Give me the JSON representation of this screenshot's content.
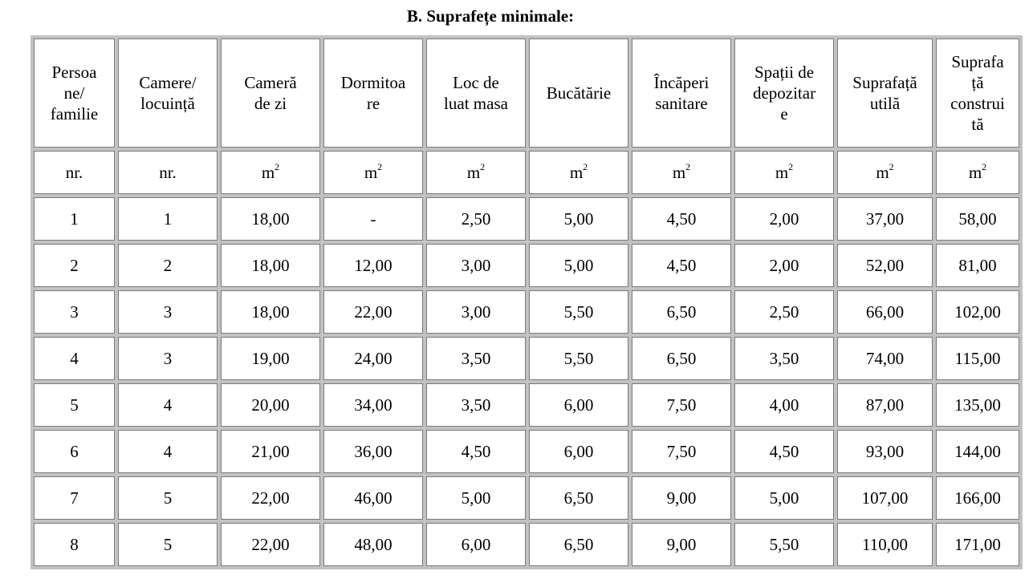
{
  "title": "B. Suprafețe minimale:",
  "columns": [
    "Persoa ne/ familie",
    "Camere/ locuință",
    "Cameră de zi",
    "Dormitoa re",
    "Loc de luat masa",
    "Bucătărie",
    "Încăperi sanitare",
    "Spații de depozitar e",
    "Suprafață utilă",
    "Suprafa ță construi tă"
  ],
  "header_lines": [
    [
      "Persoa",
      "ne/",
      "familie"
    ],
    [
      "Camere/",
      "locuință"
    ],
    [
      "Cameră",
      "de zi"
    ],
    [
      "Dormitoa",
      "re"
    ],
    [
      "Loc de",
      "luat masa"
    ],
    [
      "Bucătărie"
    ],
    [
      "Încăperi",
      "sanitare"
    ],
    [
      "Spații de",
      "depozitar",
      "e"
    ],
    [
      "Suprafață",
      "utilă"
    ],
    [
      "Suprafa",
      "ță",
      "construi",
      "tă"
    ]
  ],
  "units": [
    {
      "base": "nr.",
      "sup": ""
    },
    {
      "base": "nr.",
      "sup": ""
    },
    {
      "base": "m",
      "sup": "2"
    },
    {
      "base": "m",
      "sup": "2"
    },
    {
      "base": "m",
      "sup": "2"
    },
    {
      "base": "m",
      "sup": "2"
    },
    {
      "base": "m",
      "sup": "2"
    },
    {
      "base": "m",
      "sup": "2"
    },
    {
      "base": "m",
      "sup": "2"
    },
    {
      "base": "m",
      "sup": "2"
    }
  ],
  "rows": [
    [
      "1",
      "1",
      "18,00",
      "-",
      "2,50",
      "5,00",
      "4,50",
      "2,00",
      "37,00",
      "58,00"
    ],
    [
      "2",
      "2",
      "18,00",
      "12,00",
      "3,00",
      "5,00",
      "4,50",
      "2,00",
      "52,00",
      "81,00"
    ],
    [
      "3",
      "3",
      "18,00",
      "22,00",
      "3,00",
      "5,50",
      "6,50",
      "2,50",
      "66,00",
      "102,00"
    ],
    [
      "4",
      "3",
      "19,00",
      "24,00",
      "3,50",
      "5,50",
      "6,50",
      "3,50",
      "74,00",
      "115,00"
    ],
    [
      "5",
      "4",
      "20,00",
      "34,00",
      "3,50",
      "6,00",
      "7,50",
      "4,00",
      "87,00",
      "135,00"
    ],
    [
      "6",
      "4",
      "21,00",
      "36,00",
      "4,50",
      "6,00",
      "7,50",
      "4,50",
      "93,00",
      "144,00"
    ],
    [
      "7",
      "5",
      "22,00",
      "46,00",
      "5,00",
      "6,50",
      "9,00",
      "5,00",
      "107,00",
      "166,00"
    ],
    [
      "8",
      "5",
      "22,00",
      "48,00",
      "6,00",
      "6,50",
      "9,00",
      "5,50",
      "110,00",
      "171,00"
    ]
  ]
}
